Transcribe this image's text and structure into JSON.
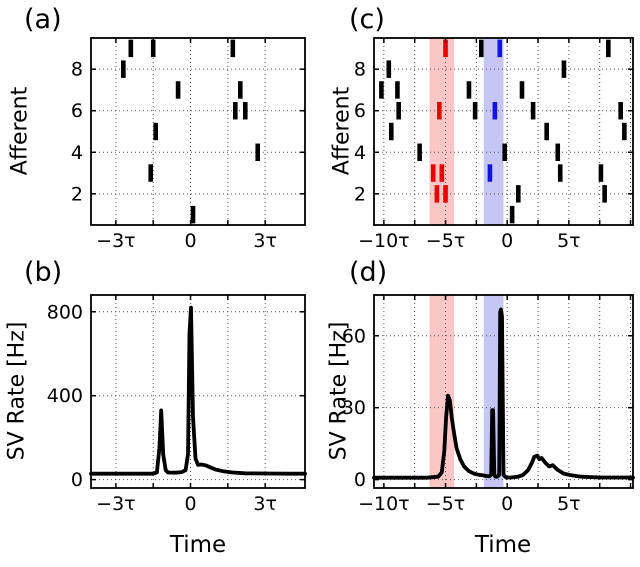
{
  "figure": {
    "background": "#ffffff",
    "axis_color": "#000000",
    "grid_color": "#555555",
    "spike_colors": {
      "k": "#000000",
      "r": "#e60000",
      "b": "#1414dc"
    },
    "band_red": "#fbc6c6",
    "band_blue": "#c6c6f5"
  },
  "chart_data": [
    {
      "panel_label": "(a)",
      "type": "raster",
      "ylabel": "Afferent",
      "xlabel": "",
      "xlim": [
        -4,
        4.6
      ],
      "ylim": [
        0.5,
        9.5
      ],
      "xticks": [
        {
          "v": -3,
          "t": "−3τ"
        },
        {
          "v": 0,
          "t": "0"
        },
        {
          "v": 3,
          "t": "3τ"
        }
      ],
      "yticks": [
        {
          "v": 2,
          "t": "2"
        },
        {
          "v": 4,
          "t": "4"
        },
        {
          "v": 6,
          "t": "6"
        },
        {
          "v": 8,
          "t": "8"
        }
      ],
      "xgrid": [
        -3,
        -1.5,
        0,
        1.5,
        3
      ],
      "ygrid": [
        2,
        4,
        6,
        8
      ],
      "spike_units": "afferent_index, time_in_tau",
      "spikes": [
        [
          9,
          -2.4
        ],
        [
          9,
          -1.5
        ],
        [
          9,
          1.7
        ],
        [
          8,
          -2.7
        ],
        [
          7,
          -0.5
        ],
        [
          7,
          2.0
        ],
        [
          6,
          1.8
        ],
        [
          6,
          2.2
        ],
        [
          5,
          -1.4
        ],
        [
          4,
          2.7
        ],
        [
          3,
          -1.6
        ],
        [
          1,
          0.1
        ]
      ]
    },
    {
      "panel_label": "(b)",
      "type": "line",
      "ylabel": "SV Rate [Hz]",
      "xlabel": "Time",
      "xlim": [
        -4,
        4.6
      ],
      "ylim": [
        -40,
        880
      ],
      "xticks": [
        {
          "v": -3,
          "t": "−3τ"
        },
        {
          "v": 0,
          "t": "0"
        },
        {
          "v": 3,
          "t": "3τ"
        }
      ],
      "yticks": [
        {
          "v": 0,
          "t": "0"
        },
        {
          "v": 400,
          "t": "400"
        },
        {
          "v": 800,
          "t": "800"
        }
      ],
      "xgrid": [
        -3,
        -1.5,
        0,
        1.5,
        3
      ],
      "ygrid": [
        0,
        400,
        800
      ],
      "line_color": "#000000",
      "series": {
        "x": [
          -4.0,
          -1.5,
          -1.35,
          -1.25,
          -1.18,
          -1.1,
          -1.0,
          -0.9,
          -0.6,
          -0.35,
          -0.2,
          -0.1,
          -0.04,
          0.02,
          0.1,
          0.2,
          0.3,
          0.45,
          0.6,
          0.8,
          1.0,
          1.3,
          1.7,
          2.2,
          3.0,
          4.0,
          4.6
        ],
        "y": [
          28,
          28,
          35,
          150,
          330,
          120,
          45,
          34,
          33,
          36,
          45,
          120,
          700,
          820,
          300,
          100,
          70,
          72,
          68,
          58,
          48,
          40,
          34,
          30,
          29,
          28,
          28
        ]
      }
    },
    {
      "panel_label": "(c)",
      "type": "raster",
      "ylabel": "Afferent",
      "xlabel": "",
      "xlim": [
        -10.8,
        10.2
      ],
      "ylim": [
        0.5,
        9.5
      ],
      "xticks": [
        {
          "v": -10,
          "t": "−10τ"
        },
        {
          "v": -5,
          "t": "−5τ"
        },
        {
          "v": 0,
          "t": "0"
        },
        {
          "v": 5,
          "t": "5τ"
        }
      ],
      "yticks": [
        {
          "v": 2,
          "t": "2"
        },
        {
          "v": 4,
          "t": "4"
        },
        {
          "v": 6,
          "t": "6"
        },
        {
          "v": 8,
          "t": "8"
        }
      ],
      "xgrid": [
        -10,
        -7.5,
        -5,
        -2.5,
        0,
        2.5,
        5,
        7.5,
        10
      ],
      "ygrid": [
        2,
        4,
        6,
        8
      ],
      "bands": [
        {
          "x0": -6.3,
          "x1": -4.3,
          "color": "#fbc6c6"
        },
        {
          "x0": -1.9,
          "x1": -0.3,
          "color": "#c6c6f5"
        }
      ],
      "spike_units": "afferent_index, time_in_tau, color_key",
      "spikes": [
        [
          9,
          -5.0,
          "r"
        ],
        [
          9,
          -2.1,
          "k"
        ],
        [
          9,
          -0.6,
          "b"
        ],
        [
          9,
          8.2,
          "k"
        ],
        [
          8,
          -9.6,
          "k"
        ],
        [
          8,
          4.6,
          "k"
        ],
        [
          7,
          -10.2,
          "k"
        ],
        [
          7,
          -8.9,
          "k"
        ],
        [
          7,
          -3.1,
          "k"
        ],
        [
          7,
          1.2,
          "k"
        ],
        [
          6,
          -8.8,
          "k"
        ],
        [
          6,
          -5.5,
          "r"
        ],
        [
          6,
          -2.6,
          "k"
        ],
        [
          6,
          -1.0,
          "b"
        ],
        [
          6,
          2.1,
          "k"
        ],
        [
          6,
          9.2,
          "k"
        ],
        [
          5,
          -9.4,
          "k"
        ],
        [
          5,
          3.2,
          "k"
        ],
        [
          5,
          9.5,
          "k"
        ],
        [
          4,
          -7.1,
          "k"
        ],
        [
          4,
          -0.2,
          "k"
        ],
        [
          4,
          4.1,
          "k"
        ],
        [
          3,
          -6.0,
          "r"
        ],
        [
          3,
          -5.3,
          "r"
        ],
        [
          3,
          -1.4,
          "b"
        ],
        [
          3,
          4.3,
          "k"
        ],
        [
          3,
          7.6,
          "k"
        ],
        [
          2,
          -5.7,
          "r"
        ],
        [
          2,
          -5.0,
          "r"
        ],
        [
          2,
          0.9,
          "k"
        ],
        [
          2,
          7.9,
          "k"
        ],
        [
          1,
          0.4,
          "k"
        ]
      ]
    },
    {
      "panel_label": "(d)",
      "type": "line",
      "ylabel": "SV Rate [Hz]",
      "xlabel": "Time",
      "xlim": [
        -10.8,
        10.2
      ],
      "ylim": [
        -3.5,
        77
      ],
      "xticks": [
        {
          "v": -10,
          "t": "−10τ"
        },
        {
          "v": -5,
          "t": "−5τ"
        },
        {
          "v": 0,
          "t": "0"
        },
        {
          "v": 5,
          "t": "5τ"
        }
      ],
      "yticks": [
        {
          "v": 0,
          "t": "0"
        },
        {
          "v": 30,
          "t": "30"
        },
        {
          "v": 60,
          "t": "60"
        }
      ],
      "xgrid": [
        -10,
        -7.5,
        -5,
        -2.5,
        0,
        2.5,
        5,
        7.5,
        10
      ],
      "ygrid": [
        0,
        30,
        60
      ],
      "bands": [
        {
          "x0": -6.3,
          "x1": -4.3,
          "color": "#fbc6c6"
        },
        {
          "x0": -1.9,
          "x1": -0.3,
          "color": "#c6c6f5"
        }
      ],
      "line_color": "#000000",
      "series": {
        "x": [
          -10.8,
          -6.5,
          -5.6,
          -5.3,
          -5.1,
          -4.95,
          -4.8,
          -4.65,
          -4.5,
          -4.3,
          -4.1,
          -3.8,
          -3.5,
          -3.1,
          -2.7,
          -2.3,
          -2.0,
          -1.7,
          -1.45,
          -1.3,
          -1.22,
          -1.14,
          -1.05,
          -0.95,
          -0.8,
          -0.65,
          -0.57,
          -0.5,
          -0.42,
          -0.3,
          -0.1,
          0.3,
          0.9,
          1.3,
          1.7,
          2.0,
          2.2,
          2.45,
          2.6,
          2.8,
          3.1,
          3.4,
          3.7,
          4.1,
          4.6,
          5.2,
          6.0,
          7.5,
          10.2
        ],
        "y": [
          0.8,
          0.8,
          1.2,
          3,
          12,
          26,
          35,
          33,
          26,
          19,
          13,
          8.5,
          5.5,
          3.5,
          2.5,
          2,
          1.8,
          1.5,
          1.4,
          2,
          29,
          29,
          2,
          1.2,
          1.2,
          2,
          70,
          71,
          68,
          2,
          0.9,
          0.9,
          1.2,
          2,
          4,
          7,
          9.5,
          10,
          8.5,
          9,
          7,
          5.5,
          6,
          4,
          2.5,
          1.8,
          1.2,
          0.9,
          0.9
        ]
      }
    }
  ]
}
